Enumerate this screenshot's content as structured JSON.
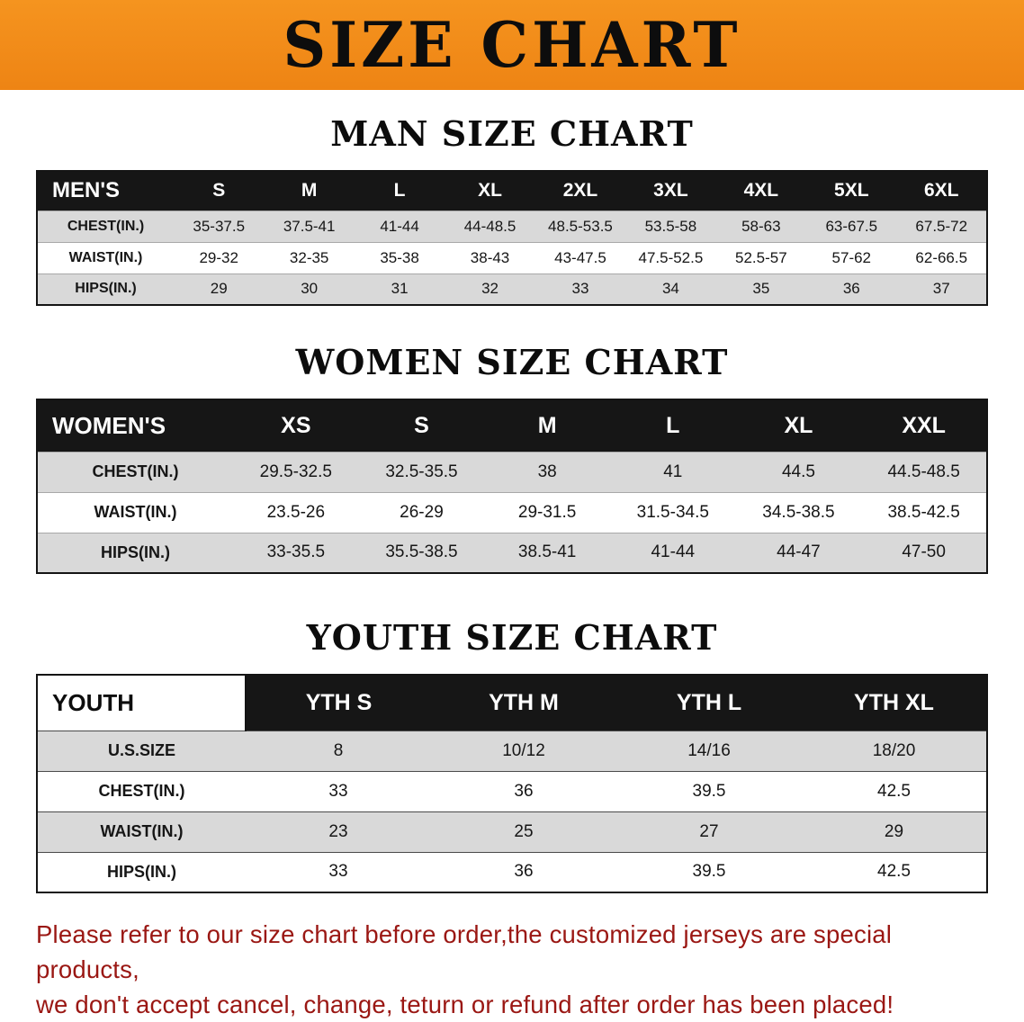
{
  "banner": {
    "title": "SIZE CHART"
  },
  "colors": {
    "banner_orange": "#f18a1d",
    "header_black": "#161616",
    "row_stripe_gray": "#d9d9d9",
    "disclaimer_red": "#9a1713"
  },
  "sections": [
    {
      "heading": "MAN SIZE CHART",
      "table": {
        "header": [
          "MEN'S",
          "S",
          "M",
          "L",
          "XL",
          "2XL",
          "3XL",
          "4XL",
          "5XL",
          "6XL"
        ],
        "rows": [
          [
            "CHEST(IN.)",
            "35-37.5",
            "37.5-41",
            "41-44",
            "44-48.5",
            "48.5-53.5",
            "53.5-58",
            "58-63",
            "63-67.5",
            "67.5-72"
          ],
          [
            "WAIST(IN.)",
            "29-32",
            "32-35",
            "35-38",
            "38-43",
            "43-47.5",
            "47.5-52.5",
            "52.5-57",
            "57-62",
            "62-66.5"
          ],
          [
            "HIPS(IN.)",
            "29",
            "30",
            "31",
            "32",
            "33",
            "34",
            "35",
            "36",
            "37"
          ]
        ]
      }
    },
    {
      "heading": "WOMEN SIZE CHART",
      "table": {
        "header": [
          "WOMEN'S",
          "XS",
          "S",
          "M",
          "L",
          "XL",
          "XXL"
        ],
        "rows": [
          [
            "CHEST(IN.)",
            "29.5-32.5",
            "32.5-35.5",
            "38",
            "41",
            "44.5",
            "44.5-48.5"
          ],
          [
            "WAIST(IN.)",
            "23.5-26",
            "26-29",
            "29-31.5",
            "31.5-34.5",
            "34.5-38.5",
            "38.5-42.5"
          ],
          [
            "HIPS(IN.)",
            "33-35.5",
            "35.5-38.5",
            "38.5-41",
            "41-44",
            "44-47",
            "47-50"
          ]
        ]
      }
    },
    {
      "heading": "YOUTH SIZE CHART",
      "table": {
        "header": [
          "YOUTH",
          "YTH S",
          "YTH M",
          "YTH L",
          "YTH XL"
        ],
        "rows": [
          [
            "U.S.SIZE",
            "8",
            "10/12",
            "14/16",
            "18/20"
          ],
          [
            "CHEST(IN.)",
            "33",
            "36",
            "39.5",
            "42.5"
          ],
          [
            "WAIST(IN.)",
            "23",
            "25",
            "27",
            "29"
          ],
          [
            "HIPS(IN.)",
            "33",
            "36",
            "39.5",
            "42.5"
          ]
        ]
      }
    }
  ],
  "disclaimer": {
    "line1": "Please refer to our size chart before order,the customized jerseys are special products,",
    "line2": "we don't accept cancel, change, teturn or refund after order has been placed!"
  }
}
